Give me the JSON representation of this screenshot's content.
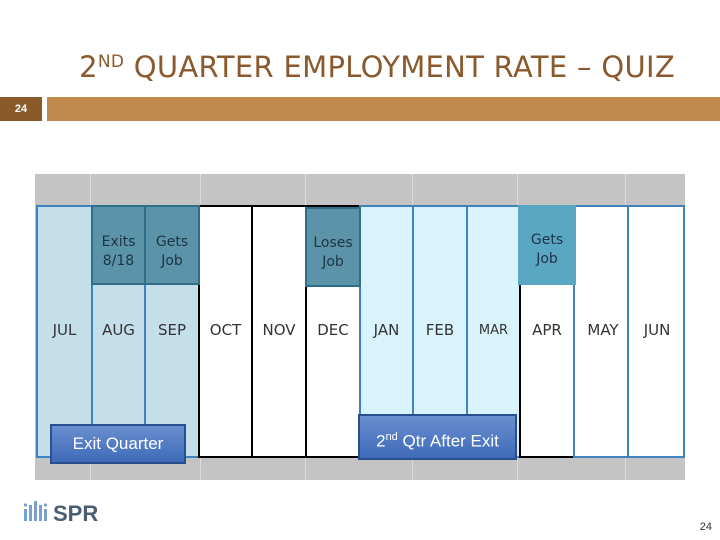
{
  "slide": {
    "title_main": "2",
    "title_sup": "ND",
    "title_rest": " QUARTER EMPLOYMENT RATE – QUIZ",
    "slide_number": "24",
    "page_number": "24"
  },
  "months": [
    "JUL",
    "AUG",
    "SEP",
    "OCT",
    "NOV",
    "DEC",
    "JAN",
    "FEB",
    "MAR",
    "APR",
    "MAY",
    "JUN"
  ],
  "events": {
    "exits": "Exits 8/18",
    "gets1": "Gets Job",
    "loses": "Loses Job",
    "gets2": "Gets Job"
  },
  "labels": {
    "exit_quarter": "Exit Quarter",
    "second_qtr_num": "2",
    "second_qtr_sup": "nd",
    "second_qtr_rest": " Qtr After Exit"
  },
  "logo": {
    "text": "SPR"
  },
  "colors": {
    "title": "#8a5a2e",
    "rule": "#c08a4c",
    "exit_quarter_fill": "#c5dfea",
    "second_quarter_fill": "#d8f3fb",
    "event_fill": "#5b94a8",
    "label_fill": "#3e6ab8"
  }
}
